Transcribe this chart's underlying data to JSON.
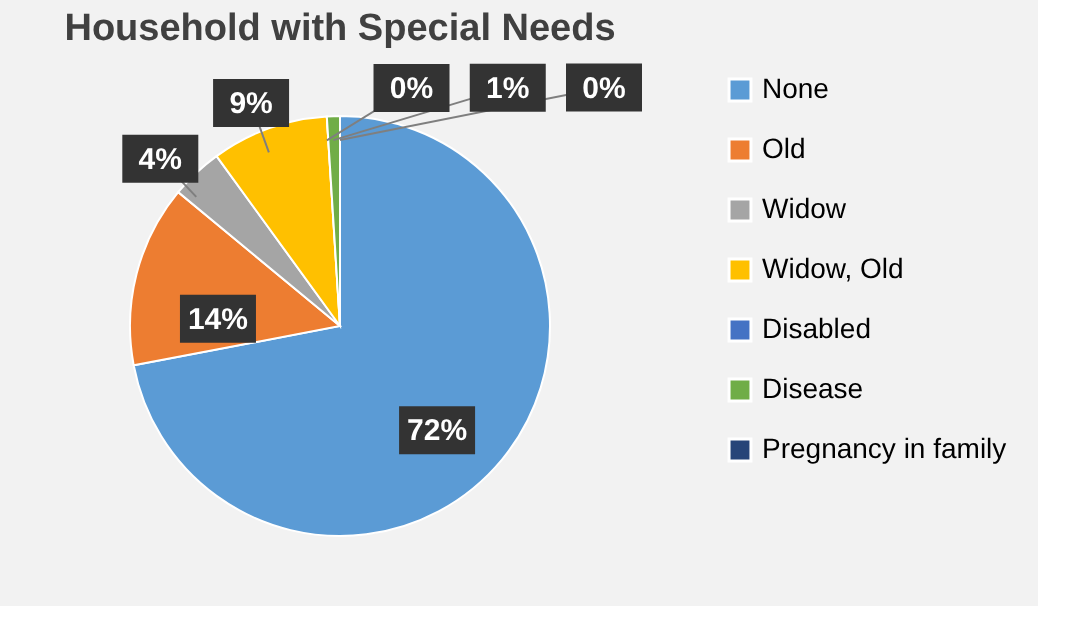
{
  "chart_data": {
    "type": "pie",
    "title": "Household with Special Needs",
    "categories": [
      "None",
      "Old",
      "Widow",
      "Widow, Old",
      "Disabled",
      "Disease",
      "Pregnancy in family"
    ],
    "values": [
      72,
      14,
      4,
      9,
      0,
      1,
      0
    ],
    "colors": [
      "#5b9bd5",
      "#ed7d31",
      "#a5a5a5",
      "#ffc000",
      "#4472c4",
      "#70ad47",
      "#264478"
    ],
    "value_labels": [
      "72%",
      "14%",
      "4%",
      "9%",
      "0%",
      "1%",
      "0%"
    ],
    "legend": "right"
  }
}
